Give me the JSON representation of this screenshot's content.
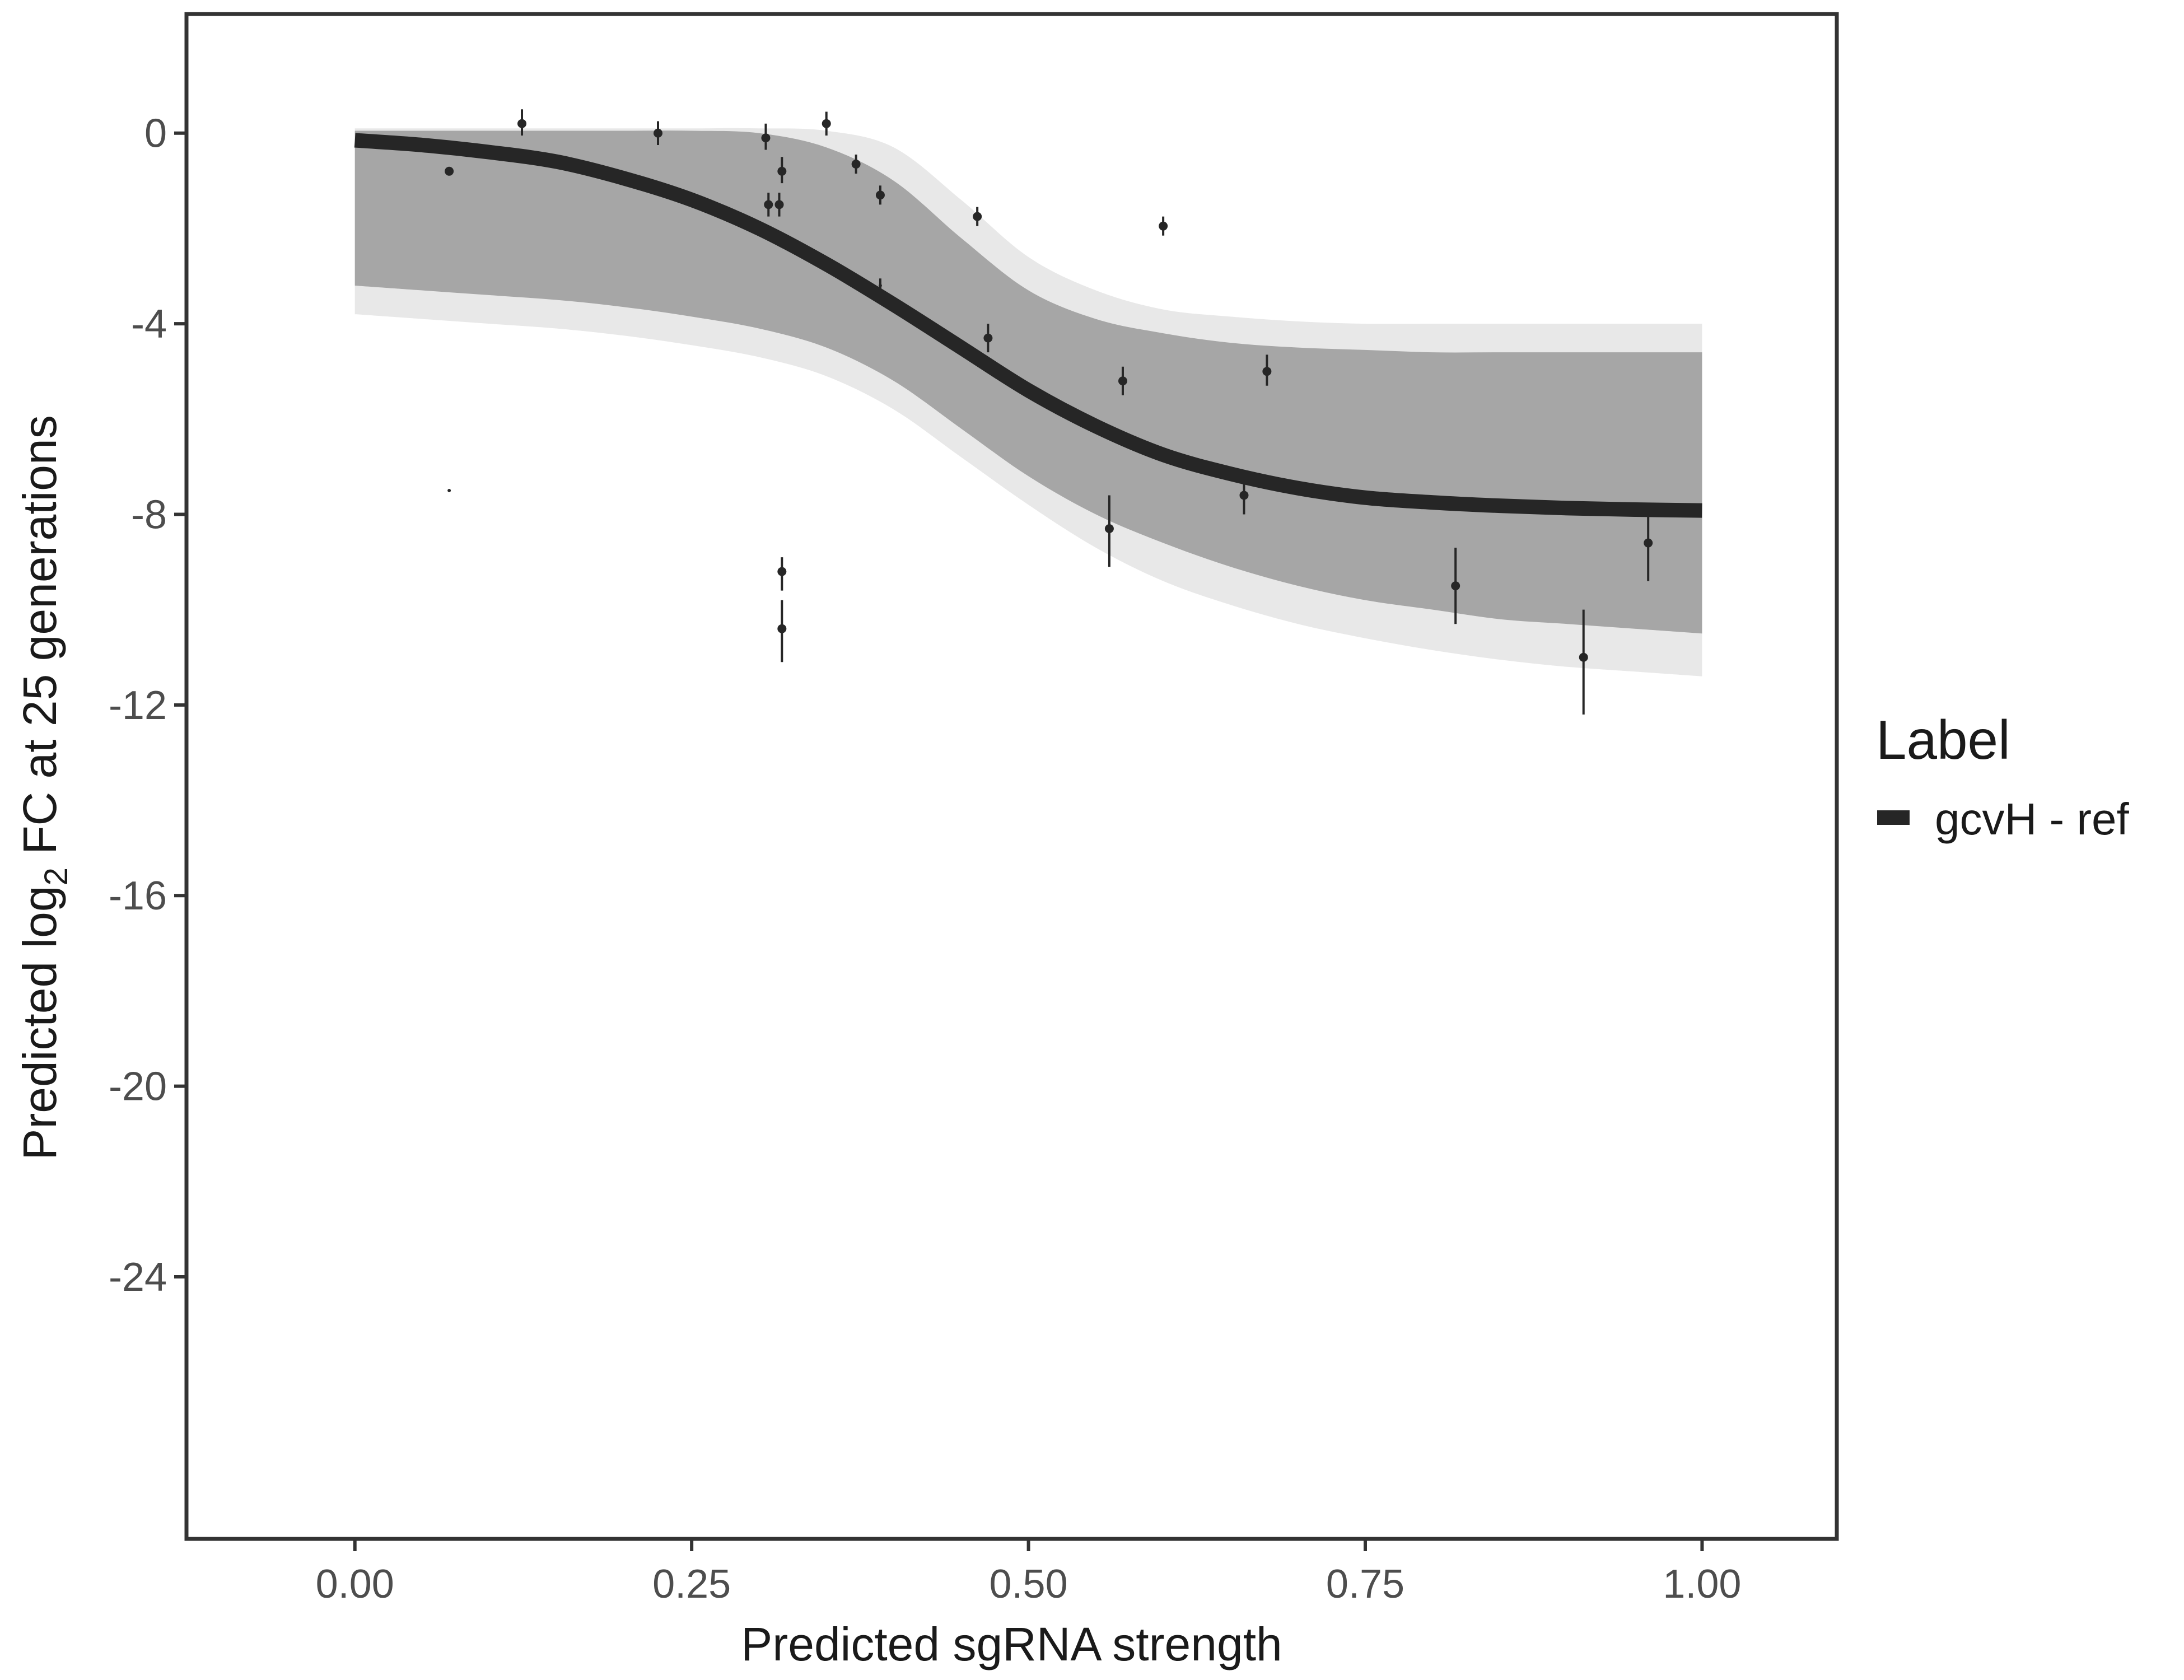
{
  "chart_data": {
    "type": "line",
    "title": "",
    "xlabel": "Predicted sgRNA strength",
    "ylabel_parts": {
      "before": "Predicted  log",
      "subscript": "2",
      "after": " FC at 25 generations"
    },
    "xlim": [
      -0.125,
      1.1
    ],
    "ylim": [
      -29.5,
      2.5
    ],
    "xticks": [
      0.0,
      0.25,
      0.5,
      0.75,
      1.0
    ],
    "xtick_labels": [
      "0.00",
      "0.25",
      "0.50",
      "0.75",
      "1.00"
    ],
    "yticks": [
      0,
      -4,
      -8,
      -12,
      -16,
      -20,
      -24
    ],
    "ytick_labels": [
      "0",
      "-4",
      "-8",
      "-12",
      "-16",
      "-20",
      "-24"
    ],
    "grid": false,
    "legend": {
      "title": "Label",
      "position": "right",
      "entries": [
        {
          "label": "gcvH - ref",
          "color": "#262626"
        }
      ]
    },
    "series": [
      {
        "name": "gcvH - ref",
        "kind": "fitted-curve",
        "color": "#262626",
        "x": [
          0.0,
          0.05,
          0.1,
          0.15,
          0.2,
          0.25,
          0.3,
          0.35,
          0.4,
          0.45,
          0.5,
          0.55,
          0.6,
          0.65,
          0.7,
          0.75,
          0.8,
          0.85,
          0.9,
          0.95,
          1.0
        ],
        "y": [
          -0.15,
          -0.25,
          -0.4,
          -0.6,
          -0.95,
          -1.4,
          -2.0,
          -2.75,
          -3.6,
          -4.5,
          -5.4,
          -6.15,
          -6.75,
          -7.15,
          -7.45,
          -7.65,
          -7.75,
          -7.82,
          -7.87,
          -7.9,
          -7.92
        ]
      }
    ],
    "posterior_band": {
      "color": "#a6a6a6",
      "x": [
        0.0,
        0.05,
        0.1,
        0.15,
        0.2,
        0.25,
        0.3,
        0.35,
        0.4,
        0.45,
        0.5,
        0.55,
        0.6,
        0.65,
        0.7,
        0.75,
        0.8,
        0.85,
        0.9,
        0.95,
        1.0
      ],
      "upper": [
        0.05,
        0.05,
        0.05,
        0.05,
        0.05,
        0.05,
        0.0,
        -0.3,
        -1.0,
        -2.2,
        -3.3,
        -3.9,
        -4.2,
        -4.4,
        -4.5,
        -4.55,
        -4.6,
        -4.6,
        -4.6,
        -4.6,
        -4.6
      ],
      "lower": [
        -3.2,
        -3.3,
        -3.4,
        -3.5,
        -3.65,
        -3.85,
        -4.1,
        -4.5,
        -5.2,
        -6.2,
        -7.2,
        -8.0,
        -8.6,
        -9.1,
        -9.5,
        -9.8,
        -10.0,
        -10.2,
        -10.3,
        -10.4,
        -10.5
      ]
    },
    "posterior_outer": {
      "color": "#e8e8e8",
      "upper": [
        0.1,
        0.1,
        0.1,
        0.1,
        0.1,
        0.1,
        0.1,
        0.05,
        -0.3,
        -1.4,
        -2.6,
        -3.3,
        -3.7,
        -3.85,
        -3.95,
        -4.0,
        -4.0,
        -4.0,
        -4.0,
        -4.0,
        -4.0
      ],
      "lower": [
        -3.8,
        -3.9,
        -4.0,
        -4.1,
        -4.25,
        -4.45,
        -4.7,
        -5.1,
        -5.8,
        -6.8,
        -7.8,
        -8.7,
        -9.4,
        -9.9,
        -10.3,
        -10.6,
        -10.85,
        -11.05,
        -11.2,
        -11.3,
        -11.4
      ]
    },
    "observations": [
      {
        "x": 0.07,
        "y": -0.8,
        "lo": -0.8,
        "hi": -0.8
      },
      {
        "x": 0.07,
        "y": -7.5,
        "lo": -7.5,
        "hi": -7.5,
        "tiny": true
      },
      {
        "x": 0.124,
        "y": 0.2,
        "lo": -0.05,
        "hi": 0.5
      },
      {
        "x": 0.225,
        "y": 0.0,
        "lo": -0.25,
        "hi": 0.25
      },
      {
        "x": 0.305,
        "y": -0.1,
        "lo": -0.35,
        "hi": 0.2
      },
      {
        "x": 0.307,
        "y": -1.5,
        "lo": -1.75,
        "hi": -1.25
      },
      {
        "x": 0.315,
        "y": -1.5,
        "lo": -1.75,
        "hi": -1.25
      },
      {
        "x": 0.317,
        "y": -0.8,
        "lo": -1.05,
        "hi": -0.5
      },
      {
        "x": 0.317,
        "y": -9.2,
        "lo": -9.6,
        "hi": -8.9
      },
      {
        "x": 0.317,
        "y": -10.4,
        "lo": -11.1,
        "hi": -9.8
      },
      {
        "x": 0.35,
        "y": 0.2,
        "lo": -0.05,
        "hi": 0.45
      },
      {
        "x": 0.372,
        "y": -0.65,
        "lo": -0.85,
        "hi": -0.45
      },
      {
        "x": 0.39,
        "y": -1.3,
        "lo": -1.5,
        "hi": -1.1
      },
      {
        "x": 0.39,
        "y": -3.2,
        "lo": -3.35,
        "hi": -3.05,
        "tiny": true
      },
      {
        "x": 0.462,
        "y": -1.75,
        "lo": -1.95,
        "hi": -1.55
      },
      {
        "x": 0.47,
        "y": -4.3,
        "lo": -4.6,
        "hi": -4.0
      },
      {
        "x": 0.56,
        "y": -8.3,
        "lo": -9.1,
        "hi": -7.6
      },
      {
        "x": 0.57,
        "y": -5.2,
        "lo": -5.5,
        "hi": -4.9
      },
      {
        "x": 0.6,
        "y": -1.95,
        "lo": -2.15,
        "hi": -1.75
      },
      {
        "x": 0.66,
        "y": -7.6,
        "lo": -8.0,
        "hi": -7.2
      },
      {
        "x": 0.677,
        "y": -5.0,
        "lo": -5.3,
        "hi": -4.65
      },
      {
        "x": 0.817,
        "y": -9.5,
        "lo": -10.3,
        "hi": -8.7
      },
      {
        "x": 0.912,
        "y": -11.0,
        "lo": -12.2,
        "hi": -10.0
      },
      {
        "x": 0.96,
        "y": -8.6,
        "lo": -9.4,
        "hi": -8.0
      }
    ],
    "colors": {
      "frame": "#333333",
      "point": "#262626"
    }
  }
}
